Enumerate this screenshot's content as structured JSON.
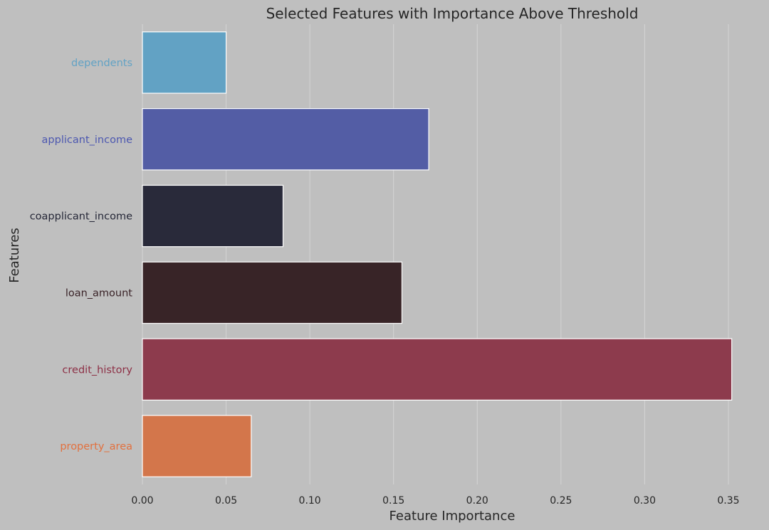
{
  "chart_data": {
    "type": "bar",
    "orientation": "horizontal",
    "title": "Selected Features with Importance Above Threshold",
    "xlabel": "Feature Importance",
    "ylabel": "Features",
    "xlim": [
      0,
      0.37
    ],
    "xticks": [
      "0.00",
      "0.05",
      "0.10",
      "0.15",
      "0.20",
      "0.25",
      "0.30",
      "0.35"
    ],
    "xtick_values": [
      0,
      0.05,
      0.1,
      0.15,
      0.2,
      0.25,
      0.3,
      0.35
    ],
    "grid": true,
    "categories": [
      "dependents",
      "applicant_income",
      "coapplicant_income",
      "loan_amount",
      "credit_history",
      "property_area"
    ],
    "values": [
      0.05,
      0.171,
      0.084,
      0.155,
      0.352,
      0.065
    ],
    "colors": [
      "#62a2c4",
      "#535da5",
      "#292a3a",
      "#382427",
      "#8d3b4d",
      "#d3764b"
    ],
    "label_colors": [
      "#62a2c4",
      "#4c57b0",
      "#262838",
      "#3a2328",
      "#8d2f45",
      "#e2703e"
    ]
  }
}
